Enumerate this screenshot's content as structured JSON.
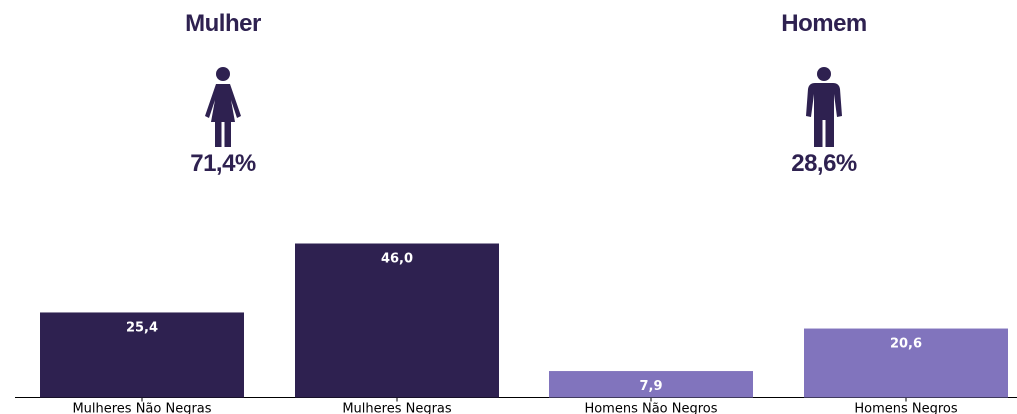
{
  "genders": {
    "female": {
      "label": "Mulher",
      "percent": "71,4%",
      "icon": "female-person-icon"
    },
    "male": {
      "label": "Homem",
      "percent": "28,6%",
      "icon": "male-person-icon"
    }
  },
  "colors": {
    "dark": "#2e2150",
    "light": "#8174bd",
    "text": "#2e2150"
  },
  "chart_data": {
    "type": "bar",
    "categories": [
      "Mulheres Não Negras",
      "Mulheres Negras",
      "Homens Não Negros",
      "Homens Negros"
    ],
    "values": [
      25.4,
      46.0,
      7.9,
      20.6
    ],
    "value_labels": [
      "25,4",
      "46,0",
      "7,9",
      "20,6"
    ],
    "bar_colors": [
      "#2e2150",
      "#2e2150",
      "#8174bd",
      "#8174bd"
    ],
    "ylim": [
      0,
      50
    ],
    "grid": false
  }
}
